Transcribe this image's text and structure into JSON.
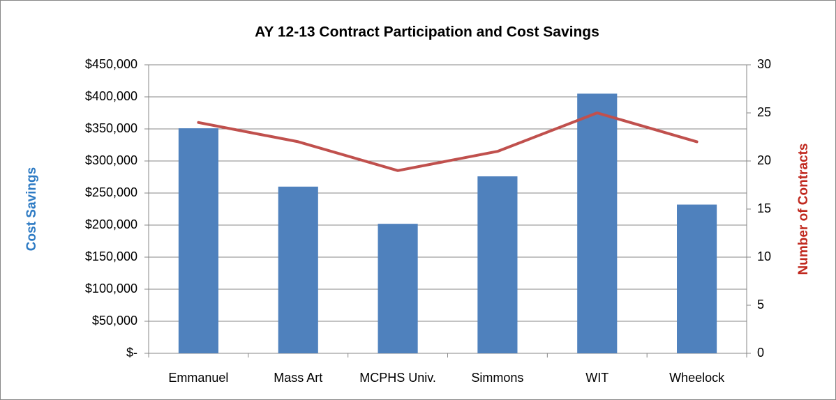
{
  "chart_data": {
    "type": "bar_line",
    "title": "AY 12-13 Contract Participation and Cost Savings",
    "categories": [
      "Emmanuel",
      "Mass Art",
      "MCPHS Univ.",
      "Simmons",
      "WIT",
      "Wheelock"
    ],
    "series": [
      {
        "type": "bar",
        "color": "#4f81bd",
        "values": [
          351000,
          260000,
          202000,
          276000,
          405000,
          232000
        ]
      },
      {
        "type": "line",
        "color": "#c0504d",
        "axis": "y2",
        "values": [
          24,
          22,
          19,
          21,
          25,
          22
        ]
      }
    ],
    "ylabel": "Cost Savings",
    "ylabel_color": "#2e7bc4",
    "y2label": "Number of Contracts",
    "y2label_color": "#c0281e",
    "ylim": [
      0,
      450000
    ],
    "yticks": [
      {
        "value": 0,
        "label": "$-"
      },
      {
        "value": 50000,
        "label": "$50,000"
      },
      {
        "value": 100000,
        "label": "$100,000"
      },
      {
        "value": 150000,
        "label": "$150,000"
      },
      {
        "value": 200000,
        "label": "$200,000"
      },
      {
        "value": 250000,
        "label": "$250,000"
      },
      {
        "value": 300000,
        "label": "$300,000"
      },
      {
        "value": 350000,
        "label": "$350,000"
      },
      {
        "value": 400000,
        "label": "$400,000"
      },
      {
        "value": 450000,
        "label": "$450,000"
      }
    ],
    "y2lim": [
      0,
      30
    ],
    "y2ticks": [
      0,
      5,
      10,
      15,
      20,
      25,
      30
    ],
    "grid": true
  }
}
